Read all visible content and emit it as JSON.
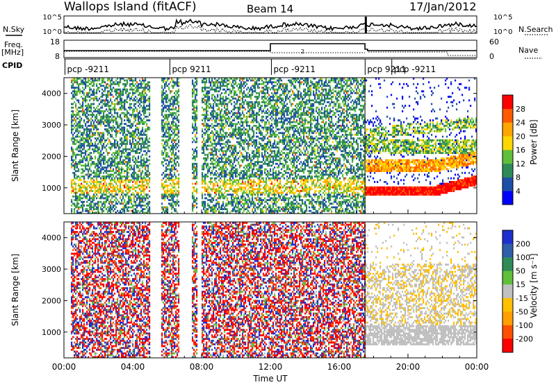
{
  "header": {
    "site": "Wallops Island (fitACF)",
    "beam": "Beam 14",
    "date": "17/Jan/2012"
  },
  "side_labels": {
    "nsky": "N.Sky",
    "nsearch": "N.Search",
    "freq": "Freq.",
    "mhz": "[MHz]",
    "nave": "Nave",
    "cpid": "CPID"
  },
  "noise_panel": {
    "left_ticks": [
      "10^5",
      "10^0"
    ],
    "right_ticks": [
      "10^5",
      "10^0"
    ]
  },
  "freq_panel": {
    "left_ticks": [
      "18",
      "8"
    ],
    "right_ticks": [
      "60",
      "0"
    ],
    "marker": "2"
  },
  "cpid_labels": [
    {
      "text": "pcp -9211",
      "t": 0.1
    },
    {
      "text": "pcp 9211",
      "t": 6.2
    },
    {
      "text": "pcp -9211",
      "t": 12.1
    },
    {
      "text": "pcp 9211",
      "t": 17.55
    },
    {
      "text": "pcp -9211",
      "t": 19.1
    }
  ],
  "colors": {
    "power": [
      "#0000ff",
      "#1e4fa8",
      "#2e8b57",
      "#5fbf3a",
      "#ffd700",
      "#ffa500",
      "#ff5a00",
      "#ff0000"
    ],
    "velocity": [
      "#1e2fd0",
      "#2e5fa8",
      "#2e8b57",
      "#5fbf3a",
      "#c0c0c0",
      "#ffc000",
      "#ffa000",
      "#ff5000",
      "#ff0000"
    ],
    "axis": "#000000"
  },
  "chart_data": [
    {
      "type": "heatmap",
      "name": "power",
      "ylabel": "Slant Range [km]",
      "yticks": [
        1000,
        2000,
        3000,
        4000
      ],
      "ylim": [
        180,
        4500
      ],
      "xlim": [
        0,
        24
      ],
      "colorbar_label": "Power [dB]",
      "colorbar_ticks": [
        "4",
        "8",
        "12",
        "16",
        "20",
        "24",
        "28"
      ],
      "colorbar_range": [
        0,
        32
      ]
    },
    {
      "type": "heatmap",
      "name": "velocity",
      "ylabel": "Slant Range [km]",
      "yticks": [
        1000,
        2000,
        3000,
        4000
      ],
      "ylim": [
        180,
        4500
      ],
      "xlim": [
        0,
        24
      ],
      "xlabel": "Time UT",
      "xtick_labels": [
        "00:00",
        "04:00",
        "08:00",
        "12:00",
        "16:00",
        "20:00",
        "00:00"
      ],
      "colorbar_label": "Velocity [m s⁻¹]",
      "colorbar_ticks": [
        "200",
        "100",
        "50",
        "15",
        "-15",
        "-50",
        "-100",
        "-200"
      ],
      "colorbar_range": [
        -250,
        250
      ]
    }
  ]
}
